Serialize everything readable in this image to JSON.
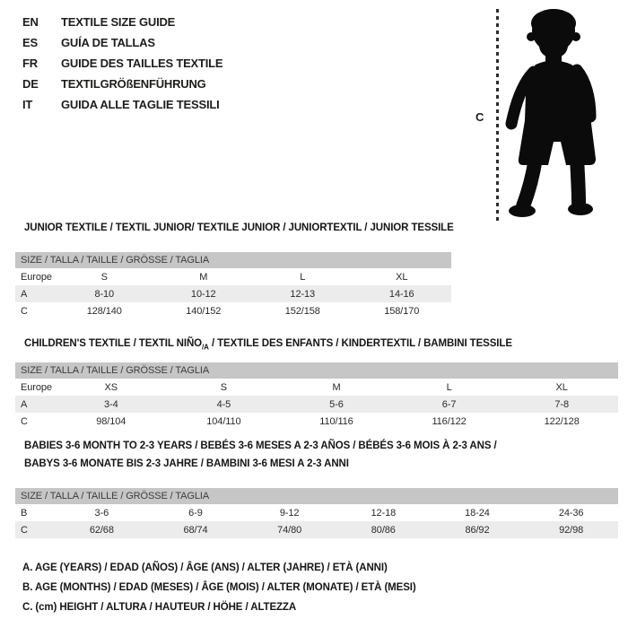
{
  "colors": {
    "bar_bg": "#c6c6c6",
    "alt_row_bg": "#ececec",
    "silhouette": "#0b0b0b"
  },
  "languages": [
    {
      "code": "EN",
      "label": "TEXTILE SIZE GUIDE"
    },
    {
      "code": "ES",
      "label": "GUÍA DE TALLAS"
    },
    {
      "code": "FR",
      "label": "GUIDE DES TAILLES TEXTILE"
    },
    {
      "code": "DE",
      "label": "TEXTILGRÖßENFÜHRUNG"
    },
    {
      "code": "IT",
      "label": "GUIDA ALLE TAGLIE TESSILI"
    }
  ],
  "figure": {
    "measure_label": "C",
    "description": "toddler-silhouette"
  },
  "sections": [
    {
      "title_prefix": "JUNIOR TEXTILE / TEXTIL JUNIOR/ TEXTILE JUNIOR / JUNIORTEXTIL / JUNIOR TESSILE",
      "title_sub": "",
      "title_suffix": "",
      "title_line2": "",
      "size_header": "SIZE / TALLA / TAILLE / GRÖSSE / TAGLIA",
      "rows": [
        {
          "label": "Europe",
          "values": [
            "S",
            "M",
            "L",
            "XL"
          ]
        },
        {
          "label": "A",
          "values": [
            "8-10",
            "10-12",
            "12-13",
            "14-16"
          ]
        },
        {
          "label": "C",
          "values": [
            "128/140",
            "140/152",
            "152/158",
            "158/170"
          ]
        }
      ]
    },
    {
      "title_prefix": "CHILDREN'S TEXTILE / TEXTIL NIÑO",
      "title_sub": "/A",
      "title_suffix": " / TEXTILE DES ENFANTS / KINDERTEXTIL / BAMBINI TESSILE",
      "title_line2": "",
      "size_header": "SIZE / TALLA / TAILLE / GRÖSSE / TAGLIA",
      "rows": [
        {
          "label": "Europe",
          "values": [
            "XS",
            "S",
            "M",
            "L",
            "XL"
          ]
        },
        {
          "label": "A",
          "values": [
            "3-4",
            "4-5",
            "5-6",
            "6-7",
            "7-8"
          ]
        },
        {
          "label": "C",
          "values": [
            "98/104",
            "104/110",
            "110/116",
            "116/122",
            "122/128"
          ]
        }
      ]
    },
    {
      "title_prefix": "BABIES 3-6 MONTH TO 2-3 YEARS / BEBÉS 3-6 MESES A 2-3 AÑOS / BÉBÉS 3-6 MOIS À 2-3 ANS /",
      "title_sub": "",
      "title_suffix": "",
      "title_line2": "BABYS 3-6 MONATE BIS 2-3 JAHRE / BAMBINI 3-6 MESI A 2-3 ANNI",
      "size_header": "SIZE / TALLA / TAILLE / GRÖSSE / TAGLIA",
      "rows": [
        {
          "label": "B",
          "values": [
            "3-6",
            "6-9",
            "9-12",
            "12-18",
            "18-24",
            "24-36"
          ]
        },
        {
          "label": "C",
          "values": [
            "62/68",
            "68/74",
            "74/80",
            "80/86",
            "86/92",
            "92/98"
          ]
        }
      ]
    }
  ],
  "footnotes": [
    "A. AGE (YEARS) / EDAD (AÑOS) / ÂGE (ANS) / ALTER (JAHRE) / ETÀ (ANNI)",
    "B. AGE (MONTHS) / EDAD (MESES) / ÂGE (MOIS) / ALTER (MONATE) / ETÀ (MESI)",
    "C. (cm) HEIGHT / ALTURA / HAUTEUR / HÖHE / ALTEZZA"
  ]
}
